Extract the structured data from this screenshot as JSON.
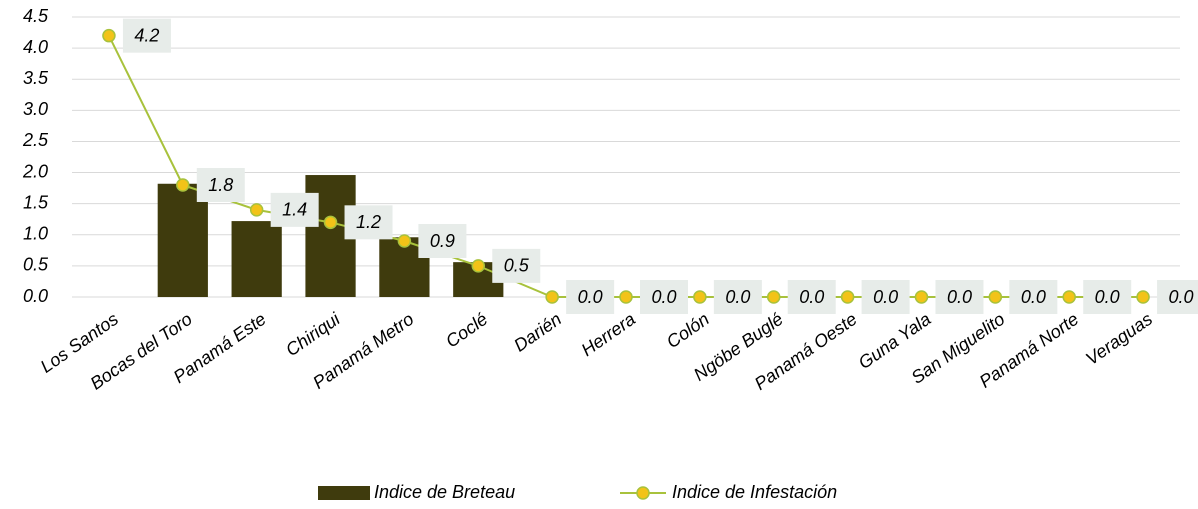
{
  "chart_data": {
    "type": "bar",
    "categories": [
      "Los Santos",
      "Bocas del Toro",
      "Panamá Este",
      "Chiriqui",
      "Panamá Metro",
      "Coclé",
      "Darién",
      "Herrera",
      "Colón",
      "Ngöbe Buglé",
      "Panamá Oeste",
      "Guna Yala",
      "San Miguelito",
      "Panamá Norte",
      "Veraguas"
    ],
    "series": [
      {
        "name": "Indice de Breteau",
        "type": "bar",
        "color": "#3f3b0d",
        "values": [
          0,
          1.82,
          1.22,
          1.96,
          0.96,
          0.56,
          0,
          0,
          0,
          0,
          0,
          0,
          0,
          0,
          0
        ]
      },
      {
        "name": "Indice de Infestación",
        "type": "line",
        "color": "#a8c23c",
        "marker_color": "#f2c318",
        "values": [
          4.2,
          1.8,
          1.4,
          1.2,
          0.9,
          0.5,
          0,
          0,
          0,
          0,
          0,
          0,
          0,
          0,
          0
        ],
        "value_labels": [
          "4.2",
          "1.8",
          "1.4",
          "1.2",
          "0.9",
          "0.5",
          "0.0",
          "0.0",
          "0.0",
          "0.0",
          "0.0",
          "0.0",
          "0.0",
          "0.0",
          "0.0"
        ]
      }
    ],
    "ylim": [
      0,
      4.5
    ],
    "yticks": [
      {
        "value": 0,
        "label": "0.0"
      },
      0.5,
      {
        "value": 1,
        "label": "1.0"
      },
      1.5,
      {
        "value": 2,
        "label": "2.0"
      },
      2.5,
      {
        "value": 3,
        "label": "3.0"
      },
      3.5,
      {
        "value": 4,
        "label": "4.0"
      },
      4.5
    ],
    "grid": true,
    "legend": "bottom"
  }
}
